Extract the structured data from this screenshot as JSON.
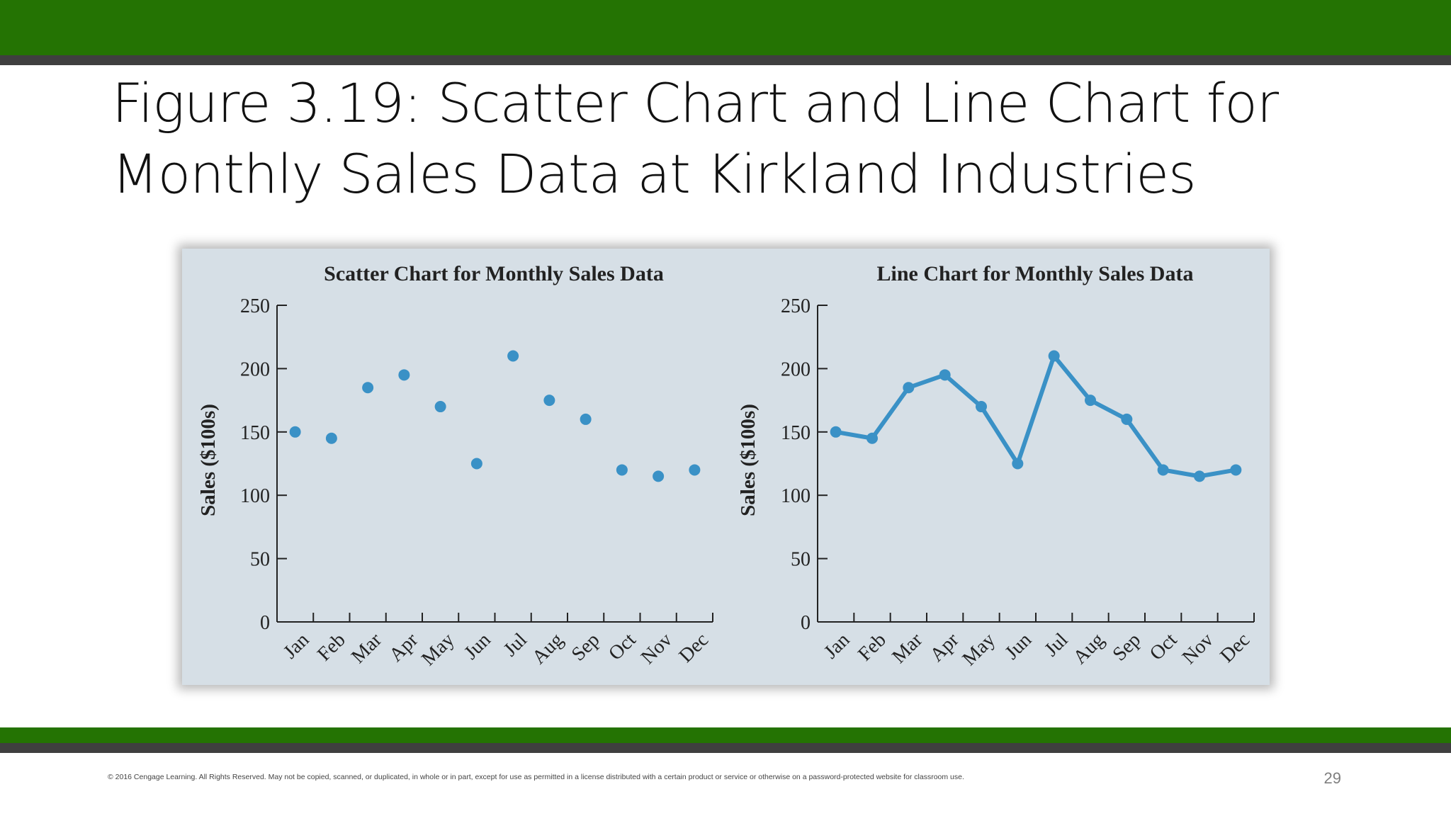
{
  "slide": {
    "title_line1": "Figure 3.19: Scatter Chart and Line Chart for",
    "title_line2": "Monthly Sales Data at Kirkland Industries",
    "footer": "© 2016 Cengage Learning.  All Rights Reserved.  May not be copied, scanned, or duplicated, in whole or in part, except for use as permitted in a license distributed with a certain product or service or otherwise on a password-protected website for classroom use.",
    "page_number": "29"
  },
  "colors": {
    "brand_green": "#247303",
    "bar_gray": "#3f3f3f",
    "panel_background": "#d6dfe6",
    "series_blue": "#3a91c6"
  },
  "chart_data": [
    {
      "type": "scatter",
      "title": "Scatter Chart for Monthly Sales Data",
      "xlabel": "",
      "ylabel": "Sales ($100s)",
      "categories": [
        "Jan",
        "Feb",
        "Mar",
        "Apr",
        "May",
        "Jun",
        "Jul",
        "Aug",
        "Sep",
        "Oct",
        "Nov",
        "Dec"
      ],
      "values": [
        150,
        145,
        185,
        195,
        170,
        125,
        210,
        175,
        160,
        120,
        115,
        120
      ],
      "ylim": [
        0,
        250
      ],
      "yticks": [
        0,
        50,
        100,
        150,
        200,
        250
      ],
      "grid": false
    },
    {
      "type": "line",
      "title": "Line Chart for Monthly Sales Data",
      "xlabel": "",
      "ylabel": "Sales ($100s)",
      "categories": [
        "Jan",
        "Feb",
        "Mar",
        "Apr",
        "May",
        "Jun",
        "Jul",
        "Aug",
        "Sep",
        "Oct",
        "Nov",
        "Dec"
      ],
      "values": [
        150,
        145,
        185,
        195,
        170,
        125,
        210,
        175,
        160,
        120,
        115,
        120
      ],
      "ylim": [
        0,
        250
      ],
      "yticks": [
        0,
        50,
        100,
        150,
        200,
        250
      ],
      "grid": false
    }
  ]
}
